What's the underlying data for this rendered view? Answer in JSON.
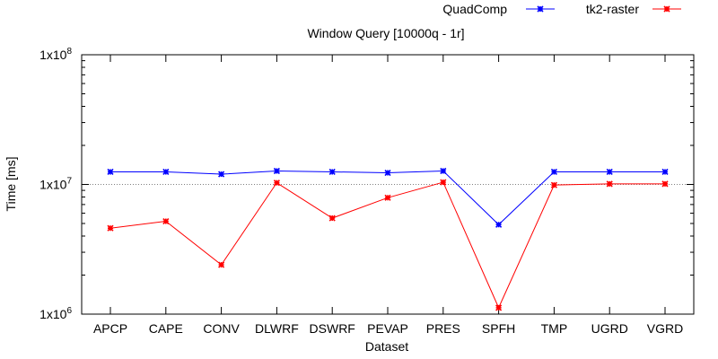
{
  "chart_data": {
    "type": "line",
    "title": "Window Query [10000q - 1r]",
    "xlabel": "Dataset",
    "ylabel": "Time [ms]",
    "y_scale": "log",
    "ylim": [
      1000000,
      100000000
    ],
    "y_ticks": [
      {
        "value": 1000000,
        "base": "1x10",
        "exp": "6"
      },
      {
        "value": 10000000,
        "base": "1x10",
        "exp": "7"
      },
      {
        "value": 100000000,
        "base": "1x10",
        "exp": "8"
      }
    ],
    "reference_line": 10000000,
    "legend_position": "top-right",
    "categories": [
      "APCP",
      "CAPE",
      "CONV",
      "DLWRF",
      "DSWRF",
      "PEVAP",
      "PRES",
      "SPFH",
      "TMP",
      "UGRD",
      "VGRD"
    ],
    "series": [
      {
        "name": "QuadComp",
        "color": "#0000ff",
        "values": [
          12500000,
          12500000,
          12000000,
          12700000,
          12500000,
          12300000,
          12700000,
          4900000,
          12500000,
          12500000,
          12500000
        ]
      },
      {
        "name": "tk2-raster",
        "color": "#ff0000",
        "values": [
          4600000,
          5200000,
          2400000,
          10300000,
          5500000,
          7900000,
          10400000,
          1120000,
          9900000,
          10100000,
          10100000
        ]
      }
    ]
  }
}
